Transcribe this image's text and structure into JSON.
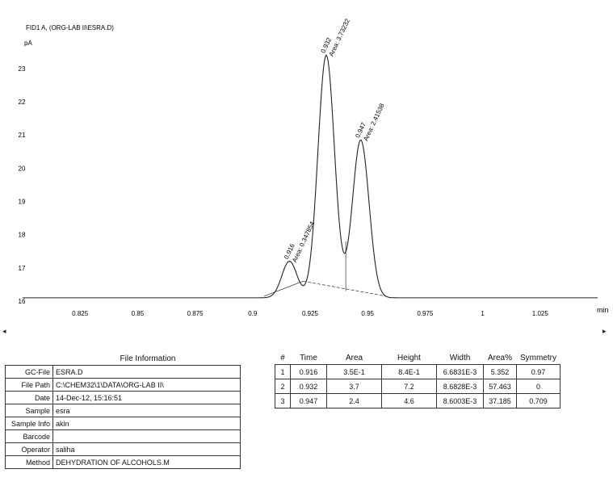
{
  "chart_data": {
    "type": "line",
    "title": "FID1 A, (ORG-LAB II\\ESRA.D)",
    "ylabel": "pA",
    "xunit": "min",
    "xlim": [
      0.8,
      1.05
    ],
    "ylim": [
      16,
      23.7
    ],
    "x_ticks": [
      "0.825",
      "0.85",
      "0.875",
      "0.9",
      "0.925",
      "0.95",
      "0.975",
      "1",
      "1.025"
    ],
    "y_ticks": [
      "16",
      "17",
      "18",
      "19",
      "20",
      "21",
      "22",
      "23"
    ],
    "baseline": 16.1,
    "peaks": [
      {
        "rt": 0.916,
        "apex": 17.2,
        "sigma": 0.0033,
        "rt_label": "0.916",
        "area_label": "Area: 0.347854"
      },
      {
        "rt": 0.932,
        "apex": 23.4,
        "sigma": 0.0036,
        "rt_label": "0.932",
        "area_label": "Area: 3.73232"
      },
      {
        "rt": 0.947,
        "apex": 20.85,
        "sigma": 0.0036,
        "rt_label": "0.947",
        "area_label": "Area: 2.41538"
      }
    ],
    "grid": false
  },
  "file_info": {
    "title": "File Information",
    "rows": [
      {
        "label": "GC-File",
        "value": "ESRA.D"
      },
      {
        "label": "File Path",
        "value": "C:\\CHEM32\\1\\DATA\\ORG-LAB II\\"
      },
      {
        "label": "Date",
        "value": "14-Dec-12, 15:16:51"
      },
      {
        "label": "Sample",
        "value": "esra"
      },
      {
        "label": "Sample Info",
        "value": "akin"
      },
      {
        "label": "Barcode",
        "value": ""
      },
      {
        "label": "Operator",
        "value": "saliha"
      },
      {
        "label": "Method",
        "value": "DEHYDRATION OF ALCOHOLS.M"
      }
    ]
  },
  "peak_table": {
    "headers": [
      "#",
      "Time",
      "Area",
      "Height",
      "Width",
      "Area%",
      "Symmetry"
    ],
    "rows": [
      [
        "1",
        "0.916",
        "3.5E-1",
        "8.4E-1",
        "6.6831E-3",
        "5.352",
        "0.97"
      ],
      [
        "2",
        "0.932",
        "3.7",
        "7.2",
        "8.6828E-3",
        "57.463",
        "0"
      ],
      [
        "3",
        "0.947",
        "2.4",
        "4.6",
        "8.6003E-3",
        "37.185",
        "0.709"
      ]
    ]
  },
  "scroll": {
    "left": "◂",
    "right": "▸"
  }
}
